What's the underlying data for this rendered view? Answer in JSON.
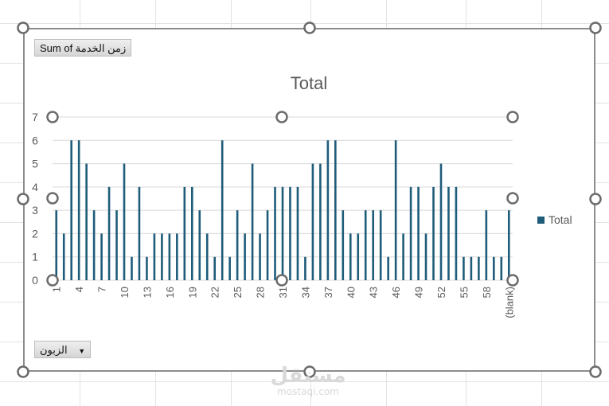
{
  "pivot": {
    "values_field": "Sum of زمن الخدمة",
    "axis_field": "الزبون",
    "dropdown_icon": "triangle-down-icon"
  },
  "colors": {
    "bar": "#1f5c7a",
    "handle": "#6b6b6b",
    "gridline": "#d9d9d9",
    "axis_text": "#595959"
  },
  "watermark": {
    "top": "مستقل",
    "bottom": "mostaqi.com"
  },
  "chart_data": {
    "type": "bar",
    "title": "Total",
    "xlabel": "",
    "ylabel": "",
    "ylim": [
      0,
      7
    ],
    "yticks": [
      0,
      1,
      2,
      3,
      4,
      5,
      6,
      7
    ],
    "grid": true,
    "legend_position": "right",
    "categories": [
      "1",
      "2",
      "3",
      "4",
      "5",
      "6",
      "7",
      "8",
      "9",
      "10",
      "11",
      "12",
      "13",
      "14",
      "15",
      "16",
      "17",
      "18",
      "19",
      "20",
      "21",
      "22",
      "23",
      "24",
      "25",
      "26",
      "27",
      "28",
      "29",
      "30",
      "31",
      "32",
      "33",
      "34",
      "35",
      "36",
      "37",
      "38",
      "39",
      "40",
      "41",
      "42",
      "43",
      "44",
      "45",
      "46",
      "47",
      "48",
      "49",
      "50",
      "51",
      "52",
      "53",
      "54",
      "55",
      "56",
      "57",
      "58",
      "59",
      "60",
      "(blank)"
    ],
    "shown_tick_labels": [
      "1",
      "4",
      "7",
      "10",
      "13",
      "16",
      "19",
      "22",
      "25",
      "28",
      "31",
      "34",
      "37",
      "40",
      "43",
      "46",
      "49",
      "52",
      "55",
      "58",
      "(blank)"
    ],
    "series": [
      {
        "name": "Total",
        "values": [
          3,
          2,
          6,
          6,
          5,
          3,
          2,
          4,
          3,
          5,
          1,
          4,
          1,
          2,
          2,
          2,
          2,
          4,
          4,
          3,
          2,
          1,
          6,
          1,
          3,
          2,
          5,
          2,
          3,
          4,
          4,
          4,
          4,
          1,
          5,
          5,
          6,
          6,
          3,
          2,
          2,
          3,
          3,
          3,
          1,
          6,
          2,
          4,
          4,
          2,
          4,
          5,
          4,
          4,
          1,
          1,
          1,
          3,
          1,
          1,
          3
        ]
      }
    ]
  }
}
